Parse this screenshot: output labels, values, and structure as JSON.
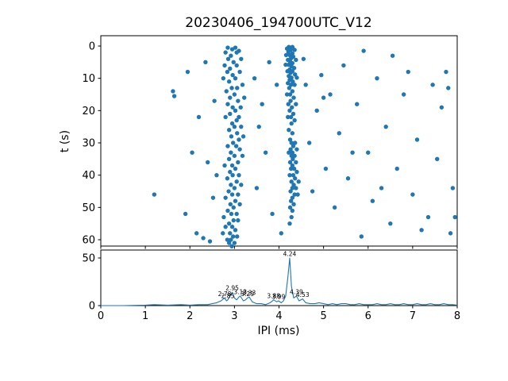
{
  "title": "20230406_194700UTC_V12",
  "colors": {
    "marker": "#1f77b4",
    "line": "#1f77b4",
    "spine": "#000000"
  },
  "chart_data": [
    {
      "type": "scatter",
      "title": "20230406_194700UTC_V12",
      "xlabel": "",
      "ylabel": "t (s)",
      "xlim": [
        0,
        8
      ],
      "ylim": [
        62,
        -3
      ],
      "x_ticks": [
        0,
        1,
        2,
        3,
        4,
        5,
        6,
        7,
        8
      ],
      "y_ticks": [
        0,
        10,
        20,
        30,
        40,
        50,
        60
      ],
      "marker_color": "#1f77b4",
      "points": [
        [
          2.85,
          0.5
        ],
        [
          3.02,
          0.5
        ],
        [
          2.95,
          1
        ],
        [
          3.1,
          1.5
        ],
        [
          2.8,
          2
        ],
        [
          3.05,
          2
        ],
        [
          2.92,
          3
        ],
        [
          3.15,
          4
        ],
        [
          2.86,
          4
        ],
        [
          2.98,
          5
        ],
        [
          3.05,
          6
        ],
        [
          2.78,
          6
        ],
        [
          2.9,
          7
        ],
        [
          3.12,
          8
        ],
        [
          2.84,
          8
        ],
        [
          2.96,
          9
        ],
        [
          3.02,
          10
        ],
        [
          2.75,
          10
        ],
        [
          2.88,
          11
        ],
        [
          3.18,
          12
        ],
        [
          2.94,
          13
        ],
        [
          3.06,
          13
        ],
        [
          2.82,
          14
        ],
        [
          3.0,
          15
        ],
        [
          2.9,
          16
        ],
        [
          3.22,
          16
        ],
        [
          3.08,
          17
        ],
        [
          2.85,
          18
        ],
        [
          2.96,
          19
        ],
        [
          3.14,
          19
        ],
        [
          3.02,
          20
        ],
        [
          2.9,
          21
        ],
        [
          3.1,
          22
        ],
        [
          2.8,
          22
        ],
        [
          3.05,
          23
        ],
        [
          2.95,
          24
        ],
        [
          3.15,
          25
        ],
        [
          3.0,
          25
        ],
        [
          2.88,
          26
        ],
        [
          3.06,
          27
        ],
        [
          2.93,
          28
        ],
        [
          3.2,
          28
        ],
        [
          3.1,
          29
        ],
        [
          2.97,
          30
        ],
        [
          3.04,
          31
        ],
        [
          2.85,
          31
        ],
        [
          3.12,
          32
        ],
        [
          2.92,
          33
        ],
        [
          3.0,
          34
        ],
        [
          3.18,
          34
        ],
        [
          2.88,
          35
        ],
        [
          3.08,
          36
        ],
        [
          2.95,
          37
        ],
        [
          2.78,
          37
        ],
        [
          3.02,
          38
        ],
        [
          2.9,
          39
        ],
        [
          3.1,
          40
        ],
        [
          2.96,
          40
        ],
        [
          2.84,
          41
        ],
        [
          3.05,
          42
        ],
        [
          2.92,
          43
        ],
        [
          3.15,
          43
        ],
        [
          3.0,
          44
        ],
        [
          2.87,
          45
        ],
        [
          3.08,
          46
        ],
        [
          2.95,
          46
        ],
        [
          2.8,
          47
        ],
        [
          3.02,
          48
        ],
        [
          2.91,
          49
        ],
        [
          3.12,
          49
        ],
        [
          2.98,
          50
        ],
        [
          2.85,
          51
        ],
        [
          3.05,
          52
        ],
        [
          2.93,
          52
        ],
        [
          2.76,
          53
        ],
        [
          2.98,
          54
        ],
        [
          3.08,
          54
        ],
        [
          2.88,
          55
        ],
        [
          2.95,
          56
        ],
        [
          2.8,
          56
        ],
        [
          3.02,
          57
        ],
        [
          2.9,
          58
        ],
        [
          2.74,
          58
        ],
        [
          2.97,
          59
        ],
        [
          3.06,
          59
        ],
        [
          2.84,
          60
        ],
        [
          2.92,
          60
        ],
        [
          3.0,
          61
        ],
        [
          2.88,
          61
        ],
        [
          2.94,
          62
        ],
        [
          4.22,
          0.3
        ],
        [
          4.3,
          0.3
        ],
        [
          4.18,
          0.8
        ],
        [
          4.26,
          1.2
        ],
        [
          4.35,
          1.2
        ],
        [
          4.21,
          1.8
        ],
        [
          4.3,
          2.3
        ],
        [
          4.24,
          2.8
        ],
        [
          4.16,
          2.8
        ],
        [
          4.32,
          3.3
        ],
        [
          4.27,
          3.8
        ],
        [
          4.2,
          4.3
        ],
        [
          4.38,
          4.3
        ],
        [
          4.25,
          4.8
        ],
        [
          4.3,
          5.3
        ],
        [
          4.22,
          5.8
        ],
        [
          4.15,
          5.8
        ],
        [
          4.28,
          6.3
        ],
        [
          4.34,
          6.8
        ],
        [
          4.24,
          7.3
        ],
        [
          4.3,
          7.8
        ],
        [
          4.19,
          7.8
        ],
        [
          4.26,
          8.3
        ],
        [
          4.36,
          8.8
        ],
        [
          4.22,
          9.3
        ],
        [
          4.28,
          9.8
        ],
        [
          4.4,
          9.8
        ],
        [
          4.24,
          10.5
        ],
        [
          4.31,
          11
        ],
        [
          4.2,
          11.5
        ],
        [
          4.27,
          12
        ],
        [
          4.35,
          12
        ],
        [
          4.23,
          13
        ],
        [
          4.3,
          14
        ],
        [
          4.25,
          15
        ],
        [
          4.18,
          15
        ],
        [
          4.33,
          16
        ],
        [
          4.26,
          17
        ],
        [
          4.21,
          18
        ],
        [
          4.38,
          18
        ],
        [
          4.29,
          19
        ],
        [
          4.24,
          20
        ],
        [
          4.32,
          21
        ],
        [
          4.27,
          22
        ],
        [
          4.2,
          22
        ],
        [
          4.35,
          23
        ],
        [
          4.28,
          24
        ],
        [
          4.22,
          26
        ],
        [
          4.3,
          27
        ],
        [
          4.25,
          29
        ],
        [
          4.36,
          30
        ],
        [
          4.28,
          30
        ],
        [
          4.32,
          31
        ],
        [
          4.26,
          32
        ],
        [
          4.4,
          32
        ],
        [
          4.3,
          33
        ],
        [
          4.22,
          33
        ],
        [
          4.35,
          34
        ],
        [
          4.28,
          34
        ],
        [
          4.31,
          35
        ],
        [
          4.38,
          36
        ],
        [
          4.25,
          36
        ],
        [
          4.3,
          37
        ],
        [
          4.34,
          38
        ],
        [
          4.27,
          38
        ],
        [
          4.4,
          39
        ],
        [
          4.32,
          40
        ],
        [
          4.24,
          40
        ],
        [
          4.36,
          41
        ],
        [
          4.28,
          42
        ],
        [
          4.44,
          42
        ],
        [
          4.33,
          43
        ],
        [
          4.3,
          44
        ],
        [
          4.38,
          44
        ],
        [
          4.26,
          45
        ],
        [
          4.35,
          46
        ],
        [
          4.42,
          46
        ],
        [
          4.3,
          47
        ],
        [
          4.27,
          48
        ],
        [
          4.33,
          49
        ],
        [
          4.25,
          50
        ],
        [
          4.3,
          51
        ],
        [
          4.28,
          53
        ],
        [
          4.24,
          55
        ],
        [
          1.2,
          46
        ],
        [
          1.62,
          14
        ],
        [
          1.65,
          15.5
        ],
        [
          1.95,
          8
        ],
        [
          2.05,
          33
        ],
        [
          1.9,
          52
        ],
        [
          2.2,
          22
        ],
        [
          2.35,
          5
        ],
        [
          2.4,
          36
        ],
        [
          2.15,
          58
        ],
        [
          2.3,
          59.5
        ],
        [
          2.45,
          60.5
        ],
        [
          2.55,
          17
        ],
        [
          2.6,
          40
        ],
        [
          2.52,
          47
        ],
        [
          3.45,
          10
        ],
        [
          3.55,
          25
        ],
        [
          3.5,
          44
        ],
        [
          3.62,
          18
        ],
        [
          3.7,
          33
        ],
        [
          3.78,
          5
        ],
        [
          3.85,
          52
        ],
        [
          3.95,
          12
        ],
        [
          4.05,
          58
        ],
        [
          4.55,
          4
        ],
        [
          4.6,
          12
        ],
        [
          4.68,
          30
        ],
        [
          4.75,
          45
        ],
        [
          4.85,
          20
        ],
        [
          4.95,
          9
        ],
        [
          5.0,
          16
        ],
        [
          5.05,
          38
        ],
        [
          5.15,
          15
        ],
        [
          5.25,
          50
        ],
        [
          5.35,
          27
        ],
        [
          5.45,
          6
        ],
        [
          5.55,
          41
        ],
        [
          5.65,
          33
        ],
        [
          5.75,
          18
        ],
        [
          5.85,
          59
        ],
        [
          5.9,
          1.5
        ],
        [
          6.0,
          33
        ],
        [
          6.1,
          48
        ],
        [
          6.2,
          10
        ],
        [
          6.3,
          44
        ],
        [
          6.4,
          25
        ],
        [
          6.5,
          55
        ],
        [
          6.55,
          3
        ],
        [
          6.65,
          38
        ],
        [
          6.8,
          15
        ],
        [
          6.9,
          8
        ],
        [
          7.0,
          46
        ],
        [
          7.1,
          29
        ],
        [
          7.2,
          57
        ],
        [
          7.35,
          53
        ],
        [
          7.45,
          12
        ],
        [
          7.55,
          35
        ],
        [
          7.65,
          19
        ],
        [
          7.75,
          8
        ],
        [
          7.8,
          13
        ],
        [
          7.85,
          58
        ],
        [
          7.9,
          44
        ],
        [
          7.95,
          53
        ]
      ]
    },
    {
      "type": "line",
      "title": "",
      "xlabel": "IPI (ms)",
      "ylabel": "",
      "xlim": [
        0,
        8
      ],
      "ylim": [
        0,
        58
      ],
      "x_ticks": [
        0,
        1,
        2,
        3,
        4,
        5,
        6,
        7,
        8
      ],
      "y_ticks": [
        0,
        50
      ],
      "line_color": "#1f77b4",
      "points": [
        [
          0,
          0
        ],
        [
          0.5,
          0
        ],
        [
          1.0,
          0.5
        ],
        [
          1.2,
          1
        ],
        [
          1.5,
          0.5
        ],
        [
          1.8,
          1
        ],
        [
          2.0,
          0.5
        ],
        [
          2.2,
          1
        ],
        [
          2.4,
          1
        ],
        [
          2.5,
          2
        ],
        [
          2.6,
          3
        ],
        [
          2.7,
          5
        ],
        [
          2.78,
          8
        ],
        [
          2.82,
          5
        ],
        [
          2.85,
          6
        ],
        [
          2.9,
          10
        ],
        [
          2.95,
          14
        ],
        [
          3.0,
          8
        ],
        [
          3.05,
          6
        ],
        [
          3.1,
          9
        ],
        [
          3.13,
          10
        ],
        [
          3.2,
          5
        ],
        [
          3.25,
          6
        ],
        [
          3.29,
          8
        ],
        [
          3.33,
          9
        ],
        [
          3.4,
          4
        ],
        [
          3.5,
          2
        ],
        [
          3.6,
          2
        ],
        [
          3.7,
          1
        ],
        [
          3.8,
          3
        ],
        [
          3.88,
          6
        ],
        [
          3.95,
          4
        ],
        [
          3.99,
          5
        ],
        [
          4.05,
          3
        ],
        [
          4.1,
          5
        ],
        [
          4.15,
          10
        ],
        [
          4.2,
          30
        ],
        [
          4.24,
          50
        ],
        [
          4.28,
          20
        ],
        [
          4.33,
          8
        ],
        [
          4.39,
          10
        ],
        [
          4.45,
          5
        ],
        [
          4.53,
          7
        ],
        [
          4.6,
          3
        ],
        [
          4.7,
          2
        ],
        [
          4.8,
          2
        ],
        [
          4.9,
          3
        ],
        [
          5.0,
          2
        ],
        [
          5.1,
          1
        ],
        [
          5.2,
          2
        ],
        [
          5.3,
          1
        ],
        [
          5.4,
          2
        ],
        [
          5.5,
          2
        ],
        [
          5.6,
          1
        ],
        [
          5.7,
          1
        ],
        [
          5.8,
          2
        ],
        [
          5.9,
          1
        ],
        [
          6.0,
          1
        ],
        [
          6.1,
          1
        ],
        [
          6.2,
          2
        ],
        [
          6.3,
          1
        ],
        [
          6.4,
          1
        ],
        [
          6.5,
          2
        ],
        [
          6.6,
          1
        ],
        [
          6.7,
          1
        ],
        [
          6.8,
          2
        ],
        [
          6.9,
          1
        ],
        [
          7.0,
          1
        ],
        [
          7.1,
          2
        ],
        [
          7.2,
          1
        ],
        [
          7.3,
          1
        ],
        [
          7.4,
          2
        ],
        [
          7.5,
          1
        ],
        [
          7.6,
          1
        ],
        [
          7.7,
          2
        ],
        [
          7.8,
          1
        ],
        [
          7.9,
          1
        ],
        [
          8.0,
          0.5
        ]
      ],
      "annotations": [
        {
          "x": 2.78,
          "y": 8,
          "label": "2.78"
        },
        {
          "x": 2.85,
          "y": 6,
          "label": "2.85"
        },
        {
          "x": 2.95,
          "y": 14,
          "label": "2.95"
        },
        {
          "x": 3.13,
          "y": 10,
          "label": "3.13"
        },
        {
          "x": 3.29,
          "y": 8,
          "label": "3.29"
        },
        {
          "x": 3.33,
          "y": 9,
          "label": "3.33"
        },
        {
          "x": 3.88,
          "y": 6,
          "label": "3.88"
        },
        {
          "x": 3.99,
          "y": 5,
          "label": "3.99"
        },
        {
          "x": 4.24,
          "y": 50,
          "label": "4.24"
        },
        {
          "x": 4.39,
          "y": 10,
          "label": "4.39"
        },
        {
          "x": 4.53,
          "y": 7,
          "label": "4.53"
        }
      ]
    }
  ]
}
